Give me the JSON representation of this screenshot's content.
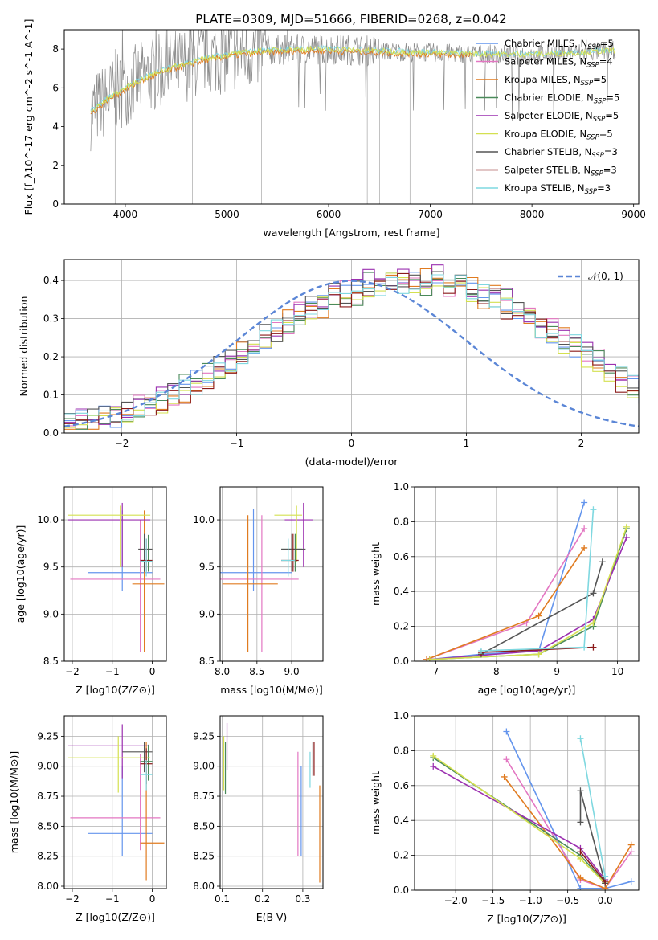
{
  "figure": {
    "title": "PLATE=0309, MJD=51666, FIBERID=0268, z=0.042"
  },
  "colors": [
    "#6495ed",
    "#e377c2",
    "#e07b20",
    "#4a8a5a",
    "#9b30b0",
    "#d4e050",
    "#555555",
    "#8b1a1a",
    "#7fd8e0"
  ],
  "spec_colors": [
    "#8c8c8c",
    "#7fd8e0",
    "#e07b20",
    "#d4e050"
  ],
  "chart_data": [
    {
      "id": "spectrum",
      "type": "line",
      "xlabel": "wavelength [Angstrom, rest frame]",
      "ylabel": "Flux [f_λ10^-17 erg cm^-2 s^-1 A^-1]",
      "xlim": [
        3400,
        9050
      ],
      "ylim": [
        0,
        9
      ],
      "xticks": [
        "4000",
        "5000",
        "6000",
        "7000",
        "8000",
        "9000"
      ],
      "yticks": [
        "0",
        "2",
        "4",
        "6",
        "8"
      ],
      "legend": [
        "Chabrier MILES, N_SSP=5",
        "Salpeter MILES, N_SSP=4",
        "Kroupa MILES, N_SSP=5",
        "Chabrier ELODIE, N_SSP=5",
        "Salpeter ELODIE, N_SSP=5",
        "Kroupa ELODIE, N_SSP=5",
        "Chabrier STELIB, N_SSP=3",
        "Salpeter STELIB, N_SSP=3",
        "Kroupa STELIB, N_SSP=3"
      ],
      "legend_placement": "upper right"
    },
    {
      "id": "residuals",
      "type": "step",
      "xlabel": "(data-model)/error",
      "ylabel": "Normed distribution",
      "xlim": [
        -2.5,
        2.5
      ],
      "ylim": [
        0,
        0.455
      ],
      "xticks": [
        "−2",
        "−1",
        "0",
        "1",
        "2"
      ],
      "yticks": [
        "0.0",
        "0.1",
        "0.2",
        "0.3",
        "0.4"
      ],
      "gaussian_legend": "𝒩(0, 1)",
      "bin_width": 0.1,
      "bin_start": -2.5,
      "base": [
        0.025,
        0.028,
        0.032,
        0.038,
        0.044,
        0.052,
        0.062,
        0.074,
        0.086,
        0.1,
        0.115,
        0.13,
        0.147,
        0.165,
        0.185,
        0.205,
        0.225,
        0.245,
        0.265,
        0.285,
        0.305,
        0.322,
        0.338,
        0.352,
        0.365,
        0.376,
        0.385,
        0.392,
        0.397,
        0.399,
        0.4,
        0.399,
        0.397,
        0.392,
        0.385,
        0.376,
        0.365,
        0.352,
        0.338,
        0.322,
        0.305,
        0.285,
        0.265,
        0.245,
        0.225,
        0.205,
        0.185,
        0.165,
        0.147,
        0.13,
        0.115,
        0.1,
        0.086,
        0.074,
        0.062,
        0.052,
        0.044,
        0.038,
        0.032,
        0.028
      ]
    },
    {
      "id": "age_vs_Z",
      "type": "errorbar",
      "xlabel": "Z [log10(Z/Z⊙)]",
      "ylabel": "age  [log10(age/yr)]",
      "xlim": [
        -2.2,
        0.35
      ],
      "ylim": [
        8.5,
        10.35
      ],
      "xticks": [
        "−2",
        "−1",
        "0"
      ],
      "yticks": [
        "8.5",
        "9.0",
        "9.5",
        "10.0"
      ],
      "points": [
        {
          "x": -0.75,
          "xl": -1.6,
          "xh": 0.0,
          "y": 9.44,
          "yl": 9.25,
          "yh": 10.1
        },
        {
          "x": -0.3,
          "xl": -2.05,
          "xh": 0.2,
          "y": 9.37,
          "yl": 8.6,
          "yh": 10.0
        },
        {
          "x": -0.2,
          "xl": -0.5,
          "xh": 0.3,
          "y": 9.32,
          "yl": 8.6,
          "yh": 10.1
        },
        {
          "x": -0.1,
          "xl": -0.3,
          "xh": 0.0,
          "y": 9.56,
          "yl": 9.45,
          "yh": 9.84
        },
        {
          "x": -0.75,
          "xl": -2.1,
          "xh": -0.05,
          "y": 10.0,
          "yl": 9.5,
          "yh": 10.18
        },
        {
          "x": -0.8,
          "xl": -2.1,
          "xh": -0.05,
          "y": 10.05,
          "yl": 9.5,
          "yh": 10.15
        },
        {
          "x": -0.2,
          "xl": -0.35,
          "xh": 0.0,
          "y": 9.69,
          "yl": 9.45,
          "yh": 9.85
        },
        {
          "x": -0.15,
          "xl": -0.3,
          "xh": 0.0,
          "y": 9.57,
          "yl": 9.45,
          "yh": 9.8
        },
        {
          "x": -0.15,
          "xl": -0.3,
          "xh": 0.0,
          "y": 9.56,
          "yl": 9.4,
          "yh": 9.8
        }
      ]
    },
    {
      "id": "age_vs_mass",
      "type": "errorbar",
      "xlabel": "mass [log10(M/M⊙)]",
      "ylabel": "",
      "xlim": [
        7.97,
        9.45
      ],
      "ylim": [
        8.5,
        10.35
      ],
      "xticks": [
        "8.0",
        "8.5",
        "9.0"
      ],
      "yticks": [
        "8.5",
        "9.0",
        "9.5",
        "10.0"
      ],
      "points": [
        {
          "x": 8.45,
          "xl": 7.9,
          "xh": 9.0,
          "y": 9.44,
          "yl": 9.25,
          "yh": 10.12
        },
        {
          "x": 8.57,
          "xl": 7.9,
          "xh": 9.1,
          "y": 9.37,
          "yl": 8.6,
          "yh": 10.05
        },
        {
          "x": 8.37,
          "xl": 8.0,
          "xh": 8.8,
          "y": 9.32,
          "yl": 8.6,
          "yh": 10.05
        },
        {
          "x": 9.05,
          "xl": 8.85,
          "xh": 9.15,
          "y": 9.69,
          "yl": 9.45,
          "yh": 9.85
        },
        {
          "x": 9.17,
          "xl": 8.9,
          "xh": 9.3,
          "y": 10.0,
          "yl": 9.5,
          "yh": 10.18
        },
        {
          "x": 9.07,
          "xl": 8.75,
          "xh": 9.15,
          "y": 10.05,
          "yl": 9.55,
          "yh": 10.15
        },
        {
          "x": 9.0,
          "xl": 8.85,
          "xh": 9.2,
          "y": 9.69,
          "yl": 9.45,
          "yh": 9.85
        },
        {
          "x": 9.02,
          "xl": 8.85,
          "xh": 9.1,
          "y": 9.57,
          "yl": 9.45,
          "yh": 9.85
        },
        {
          "x": 8.95,
          "xl": 8.85,
          "xh": 9.05,
          "y": 9.57,
          "yl": 9.4,
          "yh": 9.8
        }
      ]
    },
    {
      "id": "weight_vs_age",
      "type": "line",
      "xlabel": "age  [log10(age/yr)]",
      "ylabel": "mass weight",
      "xlim": [
        6.65,
        10.35
      ],
      "ylim": [
        0,
        1.0
      ],
      "xticks": [
        "7",
        "8",
        "9",
        "10"
      ],
      "yticks": [
        "0.0",
        "0.2",
        "0.4",
        "0.6",
        "0.8",
        "1.0"
      ],
      "series": [
        {
          "x": [
            6.9,
            7.75,
            8.7,
            9.45
          ],
          "y": [
            0.01,
            0.04,
            0.06,
            0.91
          ]
        },
        {
          "x": [
            6.85,
            8.5,
            9.45
          ],
          "y": [
            0.01,
            0.22,
            0.76
          ]
        },
        {
          "x": [
            6.85,
            8.7,
            9.45
          ],
          "y": [
            0.01,
            0.26,
            0.65
          ]
        },
        {
          "x": [
            6.9,
            8.7,
            9.6,
            10.15
          ],
          "y": [
            0.01,
            0.04,
            0.2,
            0.76
          ]
        },
        {
          "x": [
            6.9,
            8.7,
            9.6,
            10.15
          ],
          "y": [
            0.01,
            0.06,
            0.24,
            0.71
          ]
        },
        {
          "x": [
            6.9,
            8.7,
            9.6,
            10.15
          ],
          "y": [
            0.01,
            0.04,
            0.22,
            0.77
          ]
        },
        {
          "x": [
            7.75,
            9.6,
            9.75
          ],
          "y": [
            0.04,
            0.39,
            0.57
          ]
        },
        {
          "x": [
            7.75,
            9.6
          ],
          "y": [
            0.05,
            0.08
          ]
        },
        {
          "x": [
            7.75,
            9.45,
            9.6
          ],
          "y": [
            0.06,
            0.08,
            0.87
          ]
        }
      ]
    },
    {
      "id": "mass_vs_Z",
      "type": "errorbar",
      "xlabel": "Z [log10(Z/Z⊙)]",
      "ylabel": "mass [log10(M/M⊙)]",
      "xlim": [
        -2.2,
        0.35
      ],
      "ylim": [
        7.98,
        9.42
      ],
      "xticks": [
        "−2",
        "−1",
        "0"
      ],
      "yticks": [
        "8.00",
        "8.25",
        "8.50",
        "8.75",
        "9.00",
        "9.25"
      ],
      "points": [
        {
          "x": -0.75,
          "xl": -1.6,
          "xh": 0.0,
          "y": 8.44,
          "yl": 8.25,
          "yh": 9.0
        },
        {
          "x": -0.3,
          "xl": -2.05,
          "xh": 0.2,
          "y": 8.57,
          "yl": 8.3,
          "yh": 9.1
        },
        {
          "x": -0.15,
          "xl": -0.3,
          "xh": 0.3,
          "y": 8.36,
          "yl": 8.05,
          "yh": 9.2
        },
        {
          "x": -0.1,
          "xl": -0.3,
          "xh": 0.0,
          "y": 9.04,
          "yl": 8.88,
          "yh": 9.18
        },
        {
          "x": -0.75,
          "xl": -2.1,
          "xh": -0.1,
          "y": 9.17,
          "yl": 8.9,
          "yh": 9.35
        },
        {
          "x": -0.85,
          "xl": -2.1,
          "xh": -0.05,
          "y": 9.07,
          "yl": 8.78,
          "yh": 9.25
        },
        {
          "x": -0.2,
          "xl": -0.75,
          "xh": 0.0,
          "y": 9.12,
          "yl": 8.95,
          "yh": 9.2
        },
        {
          "x": -0.15,
          "xl": -0.3,
          "xh": 0.0,
          "y": 9.02,
          "yl": 8.85,
          "yh": 9.15
        },
        {
          "x": -0.15,
          "xl": -0.3,
          "xh": 0.0,
          "y": 8.93,
          "yl": 8.8,
          "yh": 9.05
        }
      ]
    },
    {
      "id": "mass_vs_ebv",
      "type": "errorbar",
      "xlabel": "E(B-V)",
      "ylabel": "",
      "xlim": [
        0.095,
        0.35
      ],
      "ylim": [
        7.98,
        9.42
      ],
      "xticks": [
        "0.1",
        "0.2",
        "0.3"
      ],
      "yticks": [
        "8.00",
        "8.25",
        "8.50",
        "8.75",
        "9.00",
        "9.25"
      ],
      "points": [
        {
          "x": 0.296,
          "xl": 0.296,
          "xh": 0.296,
          "y": 8.44,
          "yl": 8.25,
          "yh": 9.0
        },
        {
          "x": 0.288,
          "xl": 0.288,
          "xh": 0.288,
          "y": 8.57,
          "yl": 8.25,
          "yh": 9.12
        },
        {
          "x": 0.342,
          "xl": 0.342,
          "xh": 0.342,
          "y": 8.36,
          "yl": 8.03,
          "yh": 8.84
        },
        {
          "x": 0.108,
          "xl": 0.108,
          "xh": 0.108,
          "y": 8.95,
          "yl": 8.77,
          "yh": 9.2
        },
        {
          "x": 0.112,
          "xl": 0.112,
          "xh": 0.112,
          "y": 9.17,
          "yl": 8.97,
          "yh": 9.36
        },
        {
          "x": 0.104,
          "xl": 0.104,
          "xh": 0.104,
          "y": 9.07,
          "yl": 8.8,
          "yh": 9.25
        },
        {
          "x": 0.325,
          "xl": 0.325,
          "xh": 0.325,
          "y": 9.05,
          "yl": 8.92,
          "yh": 9.2
        },
        {
          "x": 0.328,
          "xl": 0.328,
          "xh": 0.328,
          "y": 9.02,
          "yl": 8.92,
          "yh": 9.2
        },
        {
          "x": 0.318,
          "xl": 0.318,
          "xh": 0.318,
          "y": 8.98,
          "yl": 8.82,
          "yh": 9.12
        }
      ]
    },
    {
      "id": "weight_vs_Z",
      "type": "line",
      "xlabel": "Z [log10(Z/Z⊙)]",
      "ylabel": "mass weight",
      "xlim": [
        -2.55,
        0.45
      ],
      "ylim": [
        0,
        1.0
      ],
      "xticks": [
        "−2.0",
        "−1.5",
        "−1.0",
        "−0.5",
        "0.0"
      ],
      "yticks": [
        "0.0",
        "0.2",
        "0.4",
        "0.6",
        "0.8",
        "1.0"
      ],
      "series": [
        {
          "x": [
            -1.32,
            -0.33,
            0.0,
            0.35
          ],
          "y": [
            0.91,
            0.01,
            0.01,
            0.05
          ]
        },
        {
          "x": [
            -1.32,
            -0.33,
            0.0,
            0.35
          ],
          "y": [
            0.75,
            0.06,
            0.01,
            0.22
          ]
        },
        {
          "x": [
            -1.35,
            -0.33,
            0.0,
            0.35
          ],
          "y": [
            0.65,
            0.07,
            0.01,
            0.26
          ]
        },
        {
          "x": [
            -2.3,
            -0.33,
            0.0
          ],
          "y": [
            0.76,
            0.2,
            0.04
          ]
        },
        {
          "x": [
            -2.3,
            -0.33,
            0.0
          ],
          "y": [
            0.71,
            0.24,
            0.06
          ]
        },
        {
          "x": [
            -2.3,
            -0.33,
            0.0
          ],
          "y": [
            0.77,
            0.18,
            0.04
          ]
        },
        {
          "x": [
            -0.33,
            -0.33,
            0.0
          ],
          "y": [
            0.39,
            0.57,
            0.04
          ]
        },
        {
          "x": [
            -0.33,
            0.0
          ],
          "y": [
            0.22,
            0.05
          ]
        },
        {
          "x": [
            -0.33,
            0.0
          ],
          "y": [
            0.87,
            0.08
          ]
        }
      ]
    }
  ]
}
